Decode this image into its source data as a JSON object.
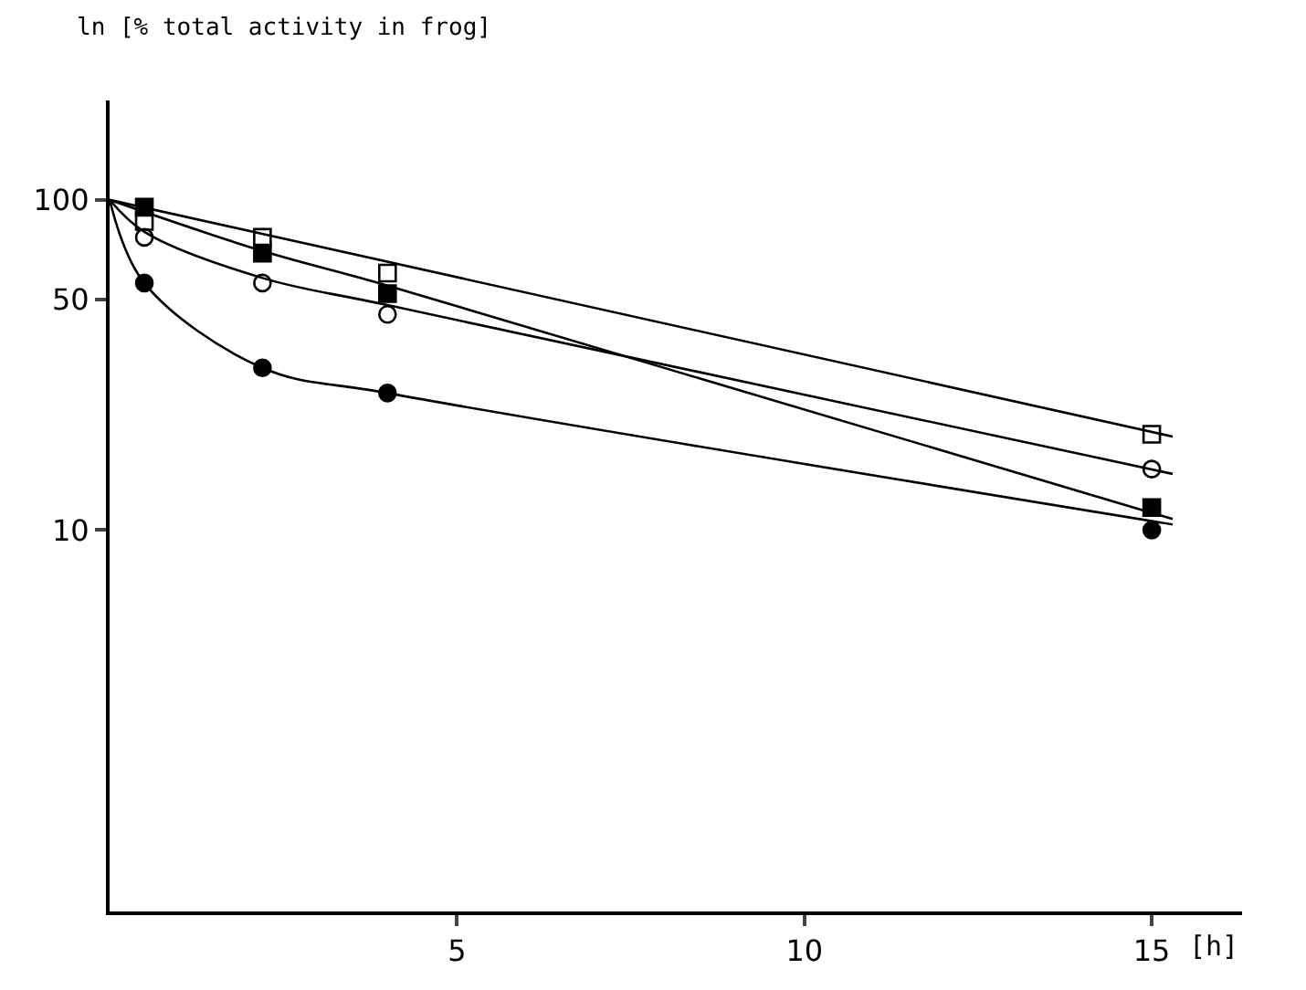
{
  "chart_data": {
    "type": "scatter",
    "ylabel": "ln [% total activity in frog]",
    "xlabel": "[h]",
    "log": "y",
    "xlim": [
      0,
      16.3
    ],
    "xticks": [
      5,
      10,
      15
    ],
    "ylim": [
      0.7,
      200
    ],
    "yticks": [
      10,
      50,
      100
    ],
    "series": [
      {
        "type": "line",
        "marker": "none",
        "color": "#000000",
        "x": [
          0,
          0.5,
          2.2,
          4,
          15.3
        ],
        "values": [
          100,
          56,
          31,
          26,
          10.4
        ]
      },
      {
        "type": "line",
        "marker": "none",
        "color": "#000000",
        "x": [
          0,
          0.5,
          2.2,
          4,
          15.3
        ],
        "values": [
          100,
          80,
          58,
          48,
          14.8
        ]
      },
      {
        "type": "line",
        "marker": "none",
        "color": "#000000",
        "x": [
          0,
          2.2,
          4,
          15.3
        ],
        "values": [
          100,
          70,
          55,
          10.8
        ]
      },
      {
        "type": "line",
        "marker": "none",
        "color": "#000000",
        "x": [
          0,
          15.3
        ],
        "values": [
          100,
          19.2
        ]
      },
      {
        "marker": "circle",
        "color": "#000000",
        "x": [
          0.5,
          2.2,
          4,
          15
        ],
        "values": [
          56,
          31,
          26,
          10
        ]
      },
      {
        "marker": "circle-open",
        "color": "#000000",
        "x": [
          0.5,
          2.2,
          4,
          15
        ],
        "values": [
          77,
          56,
          45,
          15.3
        ]
      },
      {
        "marker": "square",
        "color": "#000000",
        "x": [
          0.5,
          2.2,
          4,
          15
        ],
        "values": [
          95,
          69,
          52,
          11.7
        ]
      },
      {
        "marker": "square-open",
        "color": "#000000",
        "x": [
          0.5,
          2.2,
          4,
          15
        ],
        "values": [
          86,
          77,
          60,
          19.5
        ]
      }
    ]
  }
}
